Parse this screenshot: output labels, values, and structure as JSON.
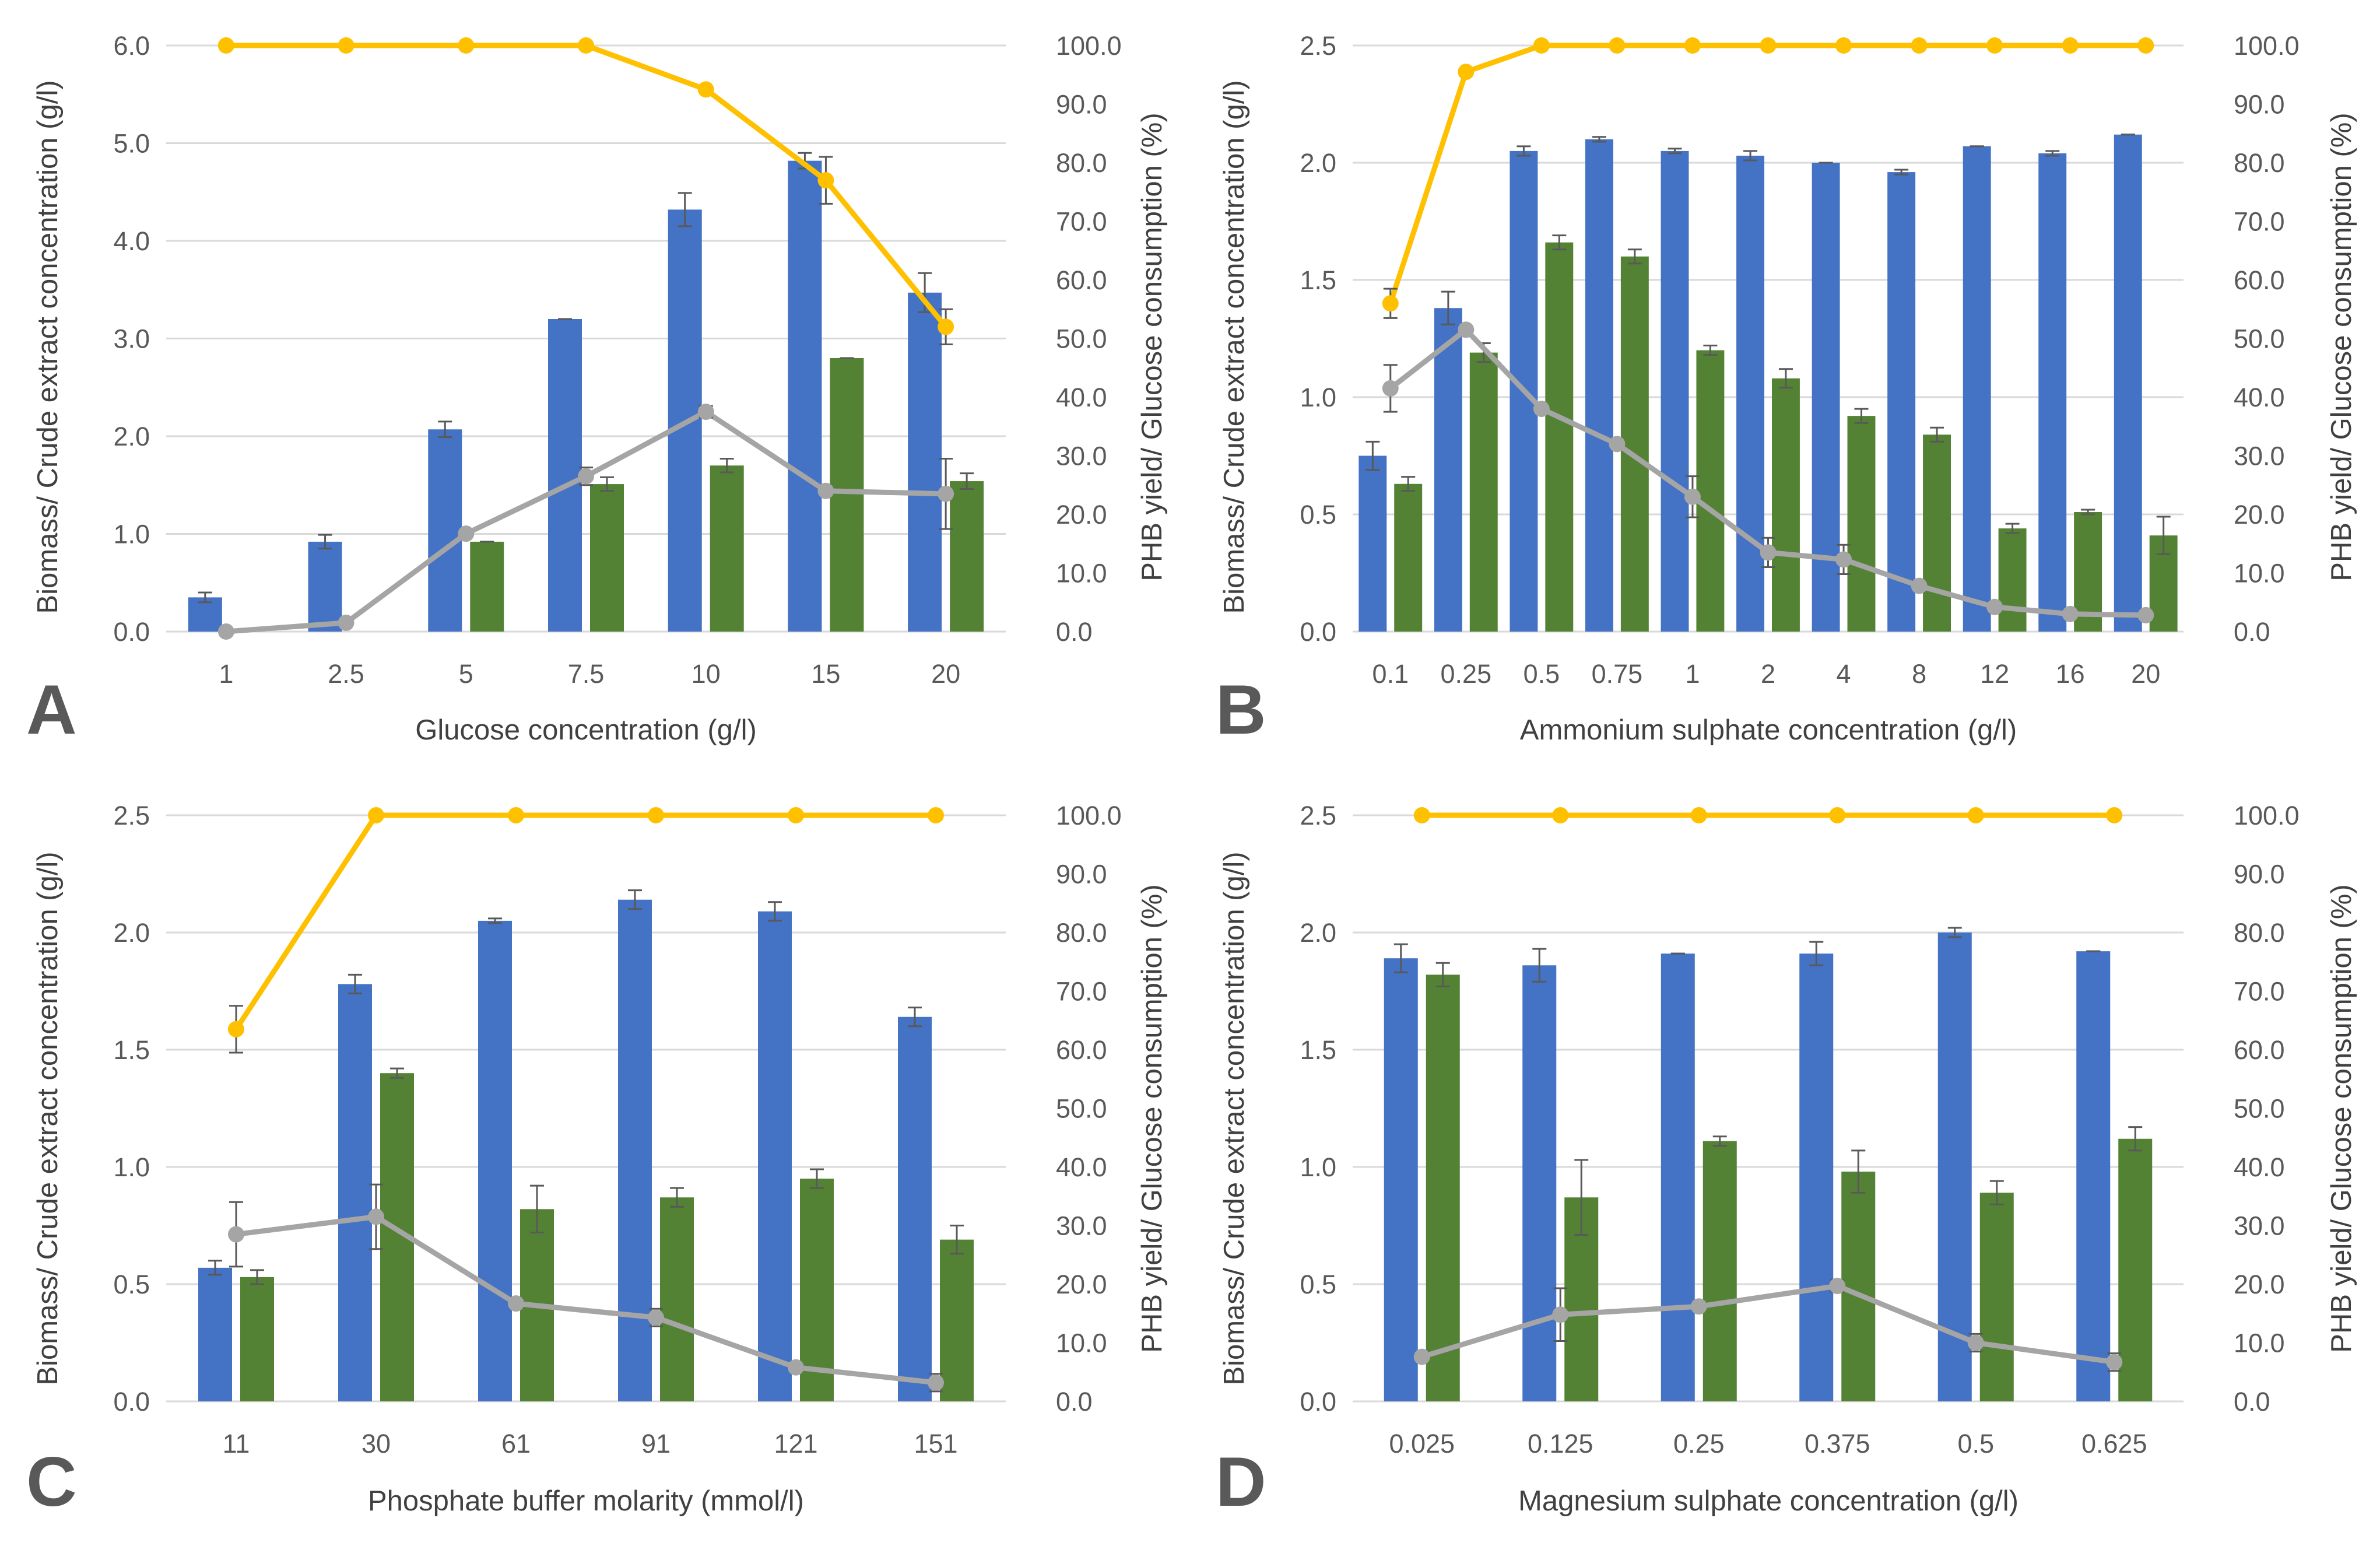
{
  "colors": {
    "biomass": "#4472C4",
    "crude": "#548235",
    "phb": "#A5A5A5",
    "glucose": "#FFC000",
    "grid": "#D9D9D9",
    "text": "#595959",
    "errbar": "#595959"
  },
  "chart_data": [
    {
      "type": "bar",
      "panel_label": "A",
      "xlabel": "Glucose concentration (g/l)",
      "ylabel": "Biomass/ Crude extract concentration (g/l)",
      "y2label": "PHB yield/ Glucose consumption (%)",
      "ylim": [
        0,
        6
      ],
      "ystep": 1,
      "ydecimals": 1,
      "y2lim": [
        0,
        100
      ],
      "y2step": 10,
      "y2decimals": 1,
      "categories": [
        "1",
        "2.5",
        "5",
        "7.5",
        "10",
        "15",
        "20"
      ],
      "series": [
        {
          "name": "Biomass",
          "type": "bar",
          "axis": "left",
          "color": "#4472C4",
          "values": [
            0.35,
            0.92,
            2.07,
            3.2,
            4.32,
            4.82,
            3.47
          ],
          "errors": [
            0.05,
            0.07,
            0.08,
            0.0,
            0.17,
            0.08,
            0.2
          ]
        },
        {
          "name": "Crude extract",
          "type": "bar",
          "axis": "left",
          "color": "#548235",
          "values": [
            null,
            null,
            0.92,
            1.51,
            1.7,
            2.8,
            1.54
          ],
          "errors": [
            0,
            0,
            0.0,
            0.07,
            0.07,
            0.0,
            0.08
          ]
        },
        {
          "name": "PHB yield",
          "type": "line",
          "axis": "right",
          "color": "#A5A5A5",
          "values": [
            0,
            1.5,
            16.7,
            26.5,
            37.5,
            24.0,
            23.5
          ],
          "errors": [
            0,
            0,
            0,
            1.5,
            1.0,
            0,
            6.0
          ]
        },
        {
          "name": "Glucose consumption",
          "type": "line",
          "axis": "right",
          "color": "#FFC000",
          "values": [
            100,
            100,
            100,
            100,
            92.5,
            77,
            52
          ],
          "errors": [
            0,
            0,
            0,
            0,
            0,
            4.0,
            3.0
          ]
        }
      ]
    },
    {
      "type": "bar",
      "panel_label": "B",
      "xlabel": "Ammonium sulphate concentration (g/l)",
      "ylabel": "Biomass/ Crude extract concentration (g/l)",
      "y2label": "PHB yield/ Glucose consumption (%)",
      "ylim": [
        0,
        2.5
      ],
      "ystep": 0.5,
      "ydecimals": 1,
      "y2lim": [
        0,
        100
      ],
      "y2step": 10,
      "y2decimals": 1,
      "categories": [
        "0.1",
        "0.25",
        "0.5",
        "0.75",
        "1",
        "2",
        "4",
        "8",
        "12",
        "16",
        "20"
      ],
      "series": [
        {
          "name": "Biomass",
          "type": "bar",
          "axis": "left",
          "color": "#4472C4",
          "values": [
            0.75,
            1.38,
            2.05,
            2.1,
            2.05,
            2.03,
            2.0,
            1.96,
            2.07,
            2.04,
            2.12
          ],
          "errors": [
            0.06,
            0.07,
            0.02,
            0.01,
            0.01,
            0.02,
            0.0,
            0.01,
            0.0,
            0.01,
            0.0
          ]
        },
        {
          "name": "Crude extract",
          "type": "bar",
          "axis": "left",
          "color": "#548235",
          "values": [
            0.63,
            1.19,
            1.66,
            1.6,
            1.2,
            1.08,
            0.92,
            0.84,
            0.44,
            0.51,
            0.41
          ],
          "errors": [
            0.03,
            0.04,
            0.03,
            0.03,
            0.02,
            0.04,
            0.03,
            0.03,
            0.02,
            0.01,
            0.08
          ]
        },
        {
          "name": "PHB yield",
          "type": "line",
          "axis": "right",
          "color": "#A5A5A5",
          "values": [
            41.5,
            51.5,
            38.0,
            32.0,
            23.0,
            13.5,
            12.3,
            7.8,
            4.2,
            3.0,
            2.8
          ],
          "errors": [
            4.0,
            0,
            0,
            0,
            3.5,
            2.5,
            2.5,
            0,
            0,
            0,
            0
          ]
        },
        {
          "name": "Glucose consumption",
          "type": "line",
          "axis": "right",
          "color": "#FFC000",
          "values": [
            56.0,
            95.5,
            100,
            100,
            100,
            100,
            100,
            100,
            100,
            100,
            100
          ],
          "errors": [
            2.5,
            0,
            0,
            0,
            0,
            0,
            0,
            0,
            0,
            0,
            0
          ]
        }
      ]
    },
    {
      "type": "bar",
      "panel_label": "C",
      "xlabel": "Phosphate buffer molarity (mmol/l)",
      "ylabel": "Biomass/ Crude extract concentration (g/l)",
      "y2label": "PHB yield/ Glucose consumption (%)",
      "ylim": [
        0,
        2.5
      ],
      "ystep": 0.5,
      "ydecimals": 1,
      "y2lim": [
        0,
        100
      ],
      "y2step": 10,
      "y2decimals": 1,
      "categories": [
        "11",
        "30",
        "61",
        "91",
        "121",
        "151"
      ],
      "series": [
        {
          "name": "Biomass",
          "type": "bar",
          "axis": "left",
          "color": "#4472C4",
          "values": [
            0.57,
            1.78,
            2.05,
            2.14,
            2.09,
            1.64
          ],
          "errors": [
            0.03,
            0.04,
            0.01,
            0.04,
            0.04,
            0.04
          ]
        },
        {
          "name": "Crude extract",
          "type": "bar",
          "axis": "left",
          "color": "#548235",
          "values": [
            0.53,
            1.4,
            0.82,
            0.87,
            0.95,
            0.69
          ],
          "errors": [
            0.03,
            0.02,
            0.1,
            0.04,
            0.04,
            0.06
          ]
        },
        {
          "name": "PHB yield",
          "type": "line",
          "axis": "right",
          "color": "#A5A5A5",
          "values": [
            28.5,
            31.5,
            16.7,
            14.3,
            5.8,
            3.2
          ],
          "errors": [
            5.5,
            5.5,
            0,
            1.5,
            0,
            1.5
          ]
        },
        {
          "name": "Glucose consumption",
          "type": "line",
          "axis": "right",
          "color": "#FFC000",
          "values": [
            63.5,
            100,
            100,
            100,
            100,
            100
          ],
          "errors": [
            4.0,
            0,
            0,
            0,
            0,
            0
          ]
        }
      ]
    },
    {
      "type": "bar",
      "panel_label": "D",
      "xlabel": "Magnesium sulphate concentration (g/l)",
      "ylabel": "Biomass/ Crude extract concentration (g/l)",
      "y2label": "PHB yield/ Glucose consumption (%)",
      "ylim": [
        0,
        2.5
      ],
      "ystep": 0.5,
      "ydecimals": 1,
      "y2lim": [
        0,
        100
      ],
      "y2step": 10,
      "y2decimals": 1,
      "categories": [
        "0.025",
        "0.125",
        "0.25",
        "0.375",
        "0.5",
        "0.625"
      ],
      "series": [
        {
          "name": "Biomass",
          "type": "bar",
          "axis": "left",
          "color": "#4472C4",
          "values": [
            1.89,
            1.86,
            1.91,
            1.91,
            2.0,
            1.92
          ],
          "errors": [
            0.06,
            0.07,
            0.0,
            0.05,
            0.02,
            0.0
          ]
        },
        {
          "name": "Crude extract",
          "type": "bar",
          "axis": "left",
          "color": "#548235",
          "values": [
            1.82,
            0.87,
            1.11,
            0.98,
            0.89,
            1.12
          ],
          "errors": [
            0.05,
            0.16,
            0.02,
            0.09,
            0.05,
            0.05
          ]
        },
        {
          "name": "PHB yield",
          "type": "line",
          "axis": "right",
          "color": "#A5A5A5",
          "values": [
            7.6,
            14.8,
            16.2,
            19.7,
            10.0,
            6.7
          ],
          "errors": [
            0,
            4.5,
            0,
            1.0,
            1.5,
            1.5
          ]
        },
        {
          "name": "Glucose consumption",
          "type": "line",
          "axis": "right",
          "color": "#FFC000",
          "values": [
            100,
            100,
            100,
            100,
            100,
            100
          ],
          "errors": [
            0,
            0,
            0,
            0,
            0,
            0
          ]
        }
      ]
    }
  ]
}
